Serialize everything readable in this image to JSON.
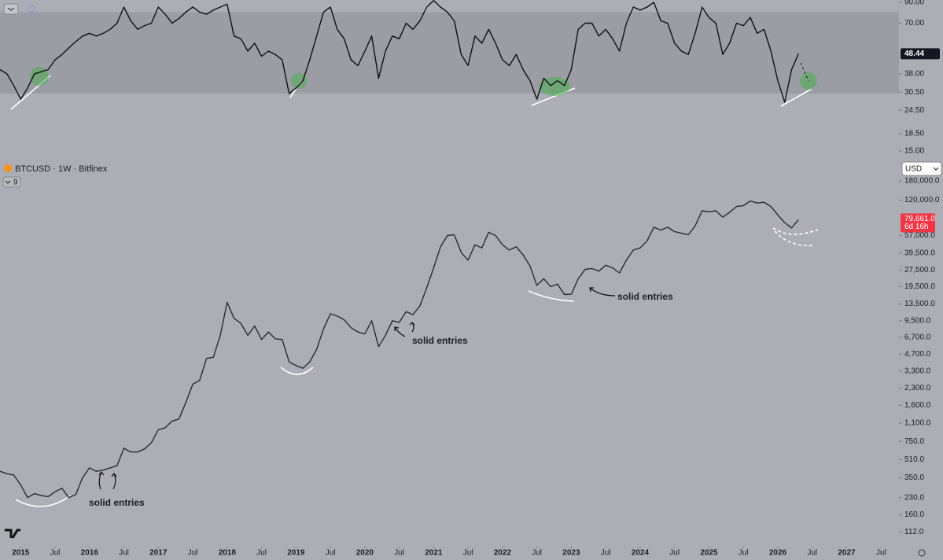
{
  "toolbar": {
    "counter": "9",
    "currency": "USD"
  },
  "chart_data": [
    {
      "type": "line",
      "log_scale": true,
      "color": "#111111",
      "band": [
        30,
        80
      ],
      "x": [
        2014.7,
        2014.8,
        2014.9,
        2015,
        2015.1,
        2015.2,
        2015.3,
        2015.4,
        2015.5,
        2015.6,
        2015.7,
        2015.8,
        2015.9,
        2016,
        2016.1,
        2016.2,
        2016.3,
        2016.4,
        2016.5,
        2016.6,
        2016.7,
        2016.8,
        2016.9,
        2017,
        2017.1,
        2017.2,
        2017.3,
        2017.4,
        2017.5,
        2017.6,
        2017.7,
        2017.8,
        2017.9,
        2018,
        2018.1,
        2018.2,
        2018.3,
        2018.4,
        2018.5,
        2018.6,
        2018.7,
        2018.8,
        2018.9,
        2019,
        2019.1,
        2019.2,
        2019.3,
        2019.4,
        2019.5,
        2019.6,
        2019.7,
        2019.8,
        2019.9,
        2020,
        2020.1,
        2020.2,
        2020.3,
        2020.4,
        2020.5,
        2020.6,
        2020.7,
        2020.8,
        2020.9,
        2021,
        2021.1,
        2021.2,
        2021.3,
        2021.4,
        2021.5,
        2021.6,
        2021.7,
        2021.8,
        2021.9,
        2022,
        2022.1,
        2022.2,
        2022.3,
        2022.4,
        2022.5,
        2022.6,
        2022.7,
        2022.8,
        2022.9,
        2023,
        2023.1,
        2023.2,
        2023.3,
        2023.4,
        2023.5,
        2023.6,
        2023.7,
        2023.8,
        2023.9,
        2024,
        2024.1,
        2024.2,
        2024.3,
        2024.4,
        2024.5,
        2024.6,
        2024.7,
        2024.8,
        2024.9,
        2025,
        2025.1,
        2025.2,
        2025.3,
        2025.4,
        2025.5,
        2025.6,
        2025.7,
        2025.8,
        2025.9,
        2026,
        2026.1,
        2026.2,
        2026.3
      ],
      "values": [
        40,
        38,
        33,
        28,
        32,
        38,
        39,
        40,
        45,
        48,
        52,
        56,
        60,
        62,
        60,
        62,
        65,
        70,
        85,
        72,
        65,
        68,
        70,
        85,
        78,
        70,
        74,
        80,
        85,
        80,
        78,
        82,
        85,
        88,
        60,
        58,
        50,
        55,
        47,
        50,
        48,
        45,
        30,
        32,
        35,
        45,
        60,
        80,
        85,
        65,
        58,
        45,
        42,
        50,
        60,
        36,
        50,
        60,
        58,
        70,
        65,
        72,
        85,
        92,
        85,
        80,
        72,
        48,
        42,
        60,
        55,
        65,
        55,
        45,
        42,
        48,
        40,
        35,
        28,
        36,
        33,
        35,
        33,
        40,
        65,
        70,
        70,
        60,
        65,
        58,
        50,
        70,
        85,
        82,
        85,
        90,
        72,
        70,
        55,
        50,
        48,
        62,
        85,
        75,
        70,
        48,
        55,
        70,
        68,
        75,
        62,
        65,
        50,
        35,
        27,
        40,
        48.44
      ],
      "xlim": [
        2014.7,
        2027.76
      ],
      "ylim": [
        13.9,
        92.6
      ],
      "yticks": [
        {
          "value": 90,
          "label": "90.00"
        },
        {
          "value": 70,
          "label": "70.00"
        },
        {
          "value": 38,
          "label": "38.00"
        },
        {
          "value": 30.5,
          "label": "30.50"
        },
        {
          "value": 24.5,
          "label": "24.50"
        },
        {
          "value": 18.5,
          "label": "18.50"
        },
        {
          "value": 15,
          "label": "15.00"
        }
      ]
    },
    {
      "type": "line",
      "log_scale": true,
      "color": "#2b2b2e",
      "title": "BTCUSD · 1W · Bitfinex",
      "last_label": "79,661.0",
      "countdown": "6d 16h",
      "annotations": [
        "solid entries",
        "solid entries",
        "solid entries"
      ],
      "x": [
        2014.7,
        2014.8,
        2014.9,
        2015,
        2015.1,
        2015.2,
        2015.3,
        2015.4,
        2015.5,
        2015.6,
        2015.7,
        2015.8,
        2015.9,
        2016,
        2016.1,
        2016.2,
        2016.3,
        2016.4,
        2016.5,
        2016.6,
        2016.7,
        2016.8,
        2016.9,
        2017,
        2017.1,
        2017.2,
        2017.3,
        2017.4,
        2017.5,
        2017.6,
        2017.7,
        2017.8,
        2017.9,
        2018,
        2018.1,
        2018.2,
        2018.3,
        2018.4,
        2018.5,
        2018.6,
        2018.7,
        2018.8,
        2018.9,
        2019,
        2019.1,
        2019.2,
        2019.3,
        2019.4,
        2019.5,
        2019.6,
        2019.7,
        2019.8,
        2019.9,
        2020,
        2020.1,
        2020.2,
        2020.3,
        2020.4,
        2020.5,
        2020.6,
        2020.7,
        2020.8,
        2020.9,
        2021,
        2021.1,
        2021.2,
        2021.3,
        2021.4,
        2021.5,
        2021.6,
        2021.7,
        2021.8,
        2021.9,
        2022,
        2022.1,
        2022.2,
        2022.3,
        2022.4,
        2022.5,
        2022.6,
        2022.7,
        2022.8,
        2022.9,
        2023,
        2023.1,
        2023.2,
        2023.3,
        2023.4,
        2023.5,
        2023.6,
        2023.7,
        2023.8,
        2023.9,
        2024,
        2024.1,
        2024.2,
        2024.3,
        2024.4,
        2024.5,
        2024.6,
        2024.7,
        2024.8,
        2024.9,
        2025,
        2025.1,
        2025.2,
        2025.3,
        2025.4,
        2025.5,
        2025.6,
        2025.7,
        2025.8,
        2025.9,
        2026,
        2026.1,
        2026.2,
        2026.3
      ],
      "values": [
        400,
        380,
        370,
        300,
        230,
        250,
        240,
        235,
        260,
        280,
        230,
        245,
        350,
        430,
        400,
        410,
        430,
        450,
        650,
        600,
        600,
        640,
        730,
        960,
        1000,
        1150,
        1200,
        1700,
        2500,
        2700,
        4300,
        4400,
        7000,
        14000,
        10000,
        9000,
        7000,
        8500,
        6400,
        7500,
        6500,
        6400,
        4000,
        3700,
        3500,
        4000,
        5200,
        8000,
        11000,
        10500,
        9700,
        8200,
        7500,
        7200,
        9500,
        5500,
        7000,
        9500,
        9200,
        11500,
        10800,
        13000,
        19000,
        29000,
        45000,
        57000,
        58000,
        40000,
        34000,
        47000,
        44000,
        61000,
        57000,
        47000,
        42000,
        45000,
        38000,
        30000,
        20000,
        23000,
        19500,
        20500,
        16500,
        16600,
        23000,
        28000,
        28500,
        27000,
        30500,
        29000,
        26000,
        34000,
        42000,
        44000,
        51000,
        68000,
        64000,
        68000,
        62000,
        60000,
        58000,
        70000,
        96000,
        94000,
        96000,
        84000,
        93000,
        105000,
        107000,
        118000,
        113000,
        115000,
        105000,
        88000,
        75000,
        67000,
        79661
      ],
      "xlim": [
        2014.7,
        2027.76
      ],
      "ylim": [
        82,
        296000
      ],
      "xticks": [
        2015,
        {
          "value": 2015.5,
          "label": "Jul"
        },
        2016,
        {
          "value": 2016.5,
          "label": "Jul"
        },
        2017,
        {
          "value": 2017.5,
          "label": "Jul"
        },
        2018,
        {
          "value": 2018.5,
          "label": "Jul"
        },
        2019,
        {
          "value": 2019.5,
          "label": "Jul"
        },
        2020,
        {
          "value": 2020.5,
          "label": "Jul"
        },
        2021,
        {
          "value": 2021.5,
          "label": "Jul"
        },
        2022,
        {
          "value": 2022.5,
          "label": "Jul"
        },
        2023,
        {
          "value": 2023.5,
          "label": "Jul"
        },
        2024,
        {
          "value": 2024.5,
          "label": "Jul"
        },
        2025,
        {
          "value": 2025.5,
          "label": "Jul"
        },
        2026,
        {
          "value": 2026.5,
          "label": "Jul"
        },
        2027,
        {
          "value": 2027.5,
          "label": "Jul"
        }
      ],
      "yticks": [
        {
          "value": 180000,
          "label": "180,000.0"
        },
        {
          "value": 120000,
          "label": "120,000.0"
        },
        {
          "value": 57000,
          "label": "57,000.0"
        },
        {
          "value": 39500,
          "label": "39,500.0"
        },
        {
          "value": 27500,
          "label": "27,500.0"
        },
        {
          "value": 19500,
          "label": "19,500.0"
        },
        {
          "value": 13500,
          "label": "13,500.0"
        },
        {
          "value": 9500,
          "label": "9,500.0"
        },
        {
          "value": 6700,
          "label": "6,700.0"
        },
        {
          "value": 4700,
          "label": "4,700.0"
        },
        {
          "value": 3300,
          "label": "3,300.0"
        },
        {
          "value": 2300,
          "label": "2,300.0"
        },
        {
          "value": 1600,
          "label": "1,600.0"
        },
        {
          "value": 1100,
          "label": "1,100.0"
        },
        {
          "value": 750,
          "label": "750.0"
        },
        {
          "value": 510,
          "label": "510.0"
        },
        {
          "value": 350,
          "label": "350.0"
        },
        {
          "value": 230,
          "label": "230.0"
        },
        {
          "value": 160,
          "label": "160.0"
        },
        {
          "value": 112,
          "label": "112.0"
        }
      ]
    }
  ]
}
